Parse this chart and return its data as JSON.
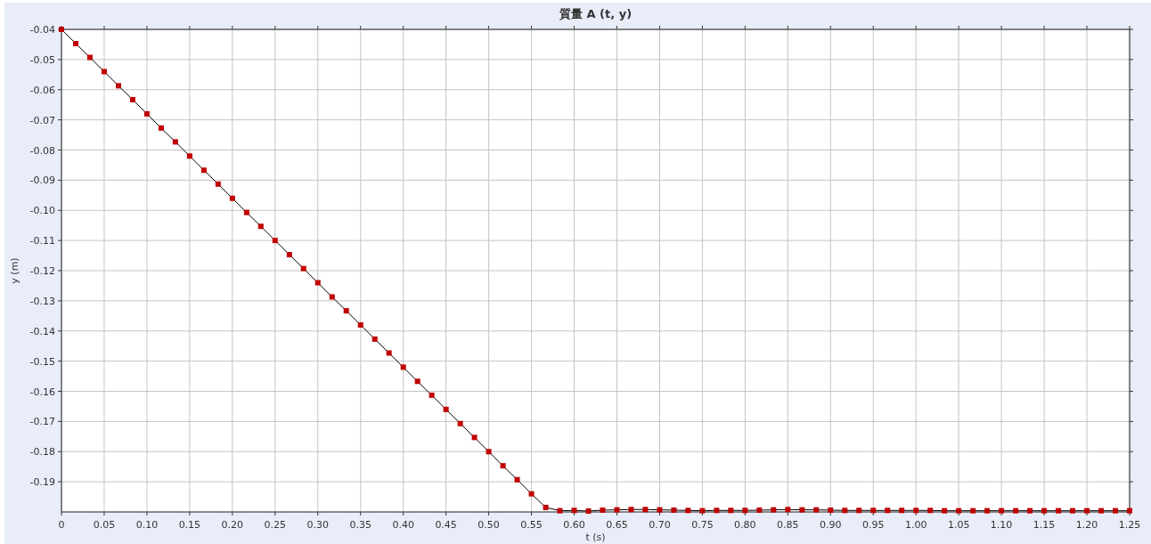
{
  "chart_data": {
    "type": "line",
    "title": "質量 A (t, y)",
    "xlabel": "t (s)",
    "ylabel": "y (m)",
    "x": [
      0,
      0.0167,
      0.0333,
      0.05,
      0.0667,
      0.0833,
      0.1,
      0.1167,
      0.1333,
      0.15,
      0.1667,
      0.1833,
      0.2,
      0.2167,
      0.2333,
      0.25,
      0.2667,
      0.2833,
      0.3,
      0.3167,
      0.3333,
      0.35,
      0.3667,
      0.3833,
      0.4,
      0.4167,
      0.4333,
      0.45,
      0.4667,
      0.4833,
      0.5,
      0.5167,
      0.5333,
      0.55,
      0.5667,
      0.5833,
      0.6,
      0.6167,
      0.6333,
      0.65,
      0.6667,
      0.6833,
      0.7,
      0.7167,
      0.7333,
      0.75,
      0.7667,
      0.7833,
      0.8,
      0.8167,
      0.8333,
      0.85,
      0.8667,
      0.8833,
      0.9,
      0.9167,
      0.9333,
      0.95,
      0.9667,
      0.9833,
      1,
      1.0167,
      1.0333,
      1.05,
      1.0667,
      1.0833,
      1.1,
      1.1167,
      1.1333,
      1.15,
      1.1667,
      1.1833,
      1.2,
      1.2167,
      1.2333,
      1.25
    ],
    "series": [
      {
        "color": "#c00000",
        "values": [
          -0.04,
          -0.0447,
          -0.0493,
          -0.054,
          -0.0587,
          -0.0633,
          -0.068,
          -0.0727,
          -0.0773,
          -0.082,
          -0.0867,
          -0.0913,
          -0.096,
          -0.1007,
          -0.1053,
          -0.11,
          -0.1147,
          -0.1193,
          -0.124,
          -0.1287,
          -0.1333,
          -0.138,
          -0.1427,
          -0.1473,
          -0.152,
          -0.1567,
          -0.1613,
          -0.166,
          -0.1707,
          -0.1753,
          -0.18,
          -0.1847,
          -0.1893,
          -0.194,
          -0.1985,
          -0.1996,
          -0.1995,
          -0.1997,
          -0.1994,
          -0.1993,
          -0.1992,
          -0.1992,
          -0.1993,
          -0.1994,
          -0.1995,
          -0.1996,
          -0.1995,
          -0.1995,
          -0.1995,
          -0.1994,
          -0.1993,
          -0.1992,
          -0.1993,
          -0.1993,
          -0.1994,
          -0.1995,
          -0.1995,
          -0.1995,
          -0.1995,
          -0.1995,
          -0.1995,
          -0.1995,
          -0.1996,
          -0.1996,
          -0.1996,
          -0.1996,
          -0.1996,
          -0.1996,
          -0.1996,
          -0.1996,
          -0.1996,
          -0.1996,
          -0.1996,
          -0.1996,
          -0.1996,
          -0.1996
        ]
      }
    ],
    "xlim": [
      0,
      1.25
    ],
    "ylim": [
      -0.2,
      -0.04
    ],
    "xticks": [
      0,
      0.05,
      {
        "value": 0.1,
        "label": "0.10"
      },
      0.15,
      {
        "value": 0.2,
        "label": "0.20"
      },
      0.25,
      {
        "value": 0.3,
        "label": "0.30"
      },
      0.35,
      {
        "value": 0.4,
        "label": "0.40"
      },
      0.45,
      {
        "value": 0.5,
        "label": "0.50"
      },
      0.55,
      {
        "value": 0.6,
        "label": "0.60"
      },
      0.65,
      {
        "value": 0.7,
        "label": "0.70"
      },
      0.75,
      {
        "value": 0.8,
        "label": "0.80"
      },
      0.85,
      {
        "value": 0.9,
        "label": "0.90"
      },
      0.95,
      {
        "value": 1,
        "label": "1.00"
      },
      1.05,
      {
        "value": 1.1,
        "label": "1.10"
      },
      1.15,
      {
        "value": 1.2,
        "label": "1.20"
      },
      1.25
    ],
    "yticks": [
      -0.04,
      -0.05,
      -0.06,
      -0.07,
      -0.08,
      -0.09,
      {
        "value": -0.1,
        "label": "-0.10"
      },
      -0.11,
      -0.12,
      -0.13,
      -0.14,
      -0.15,
      -0.16,
      -0.17,
      -0.18,
      -0.19
    ],
    "grid": true,
    "marker": "square",
    "line_style": "solid"
  }
}
